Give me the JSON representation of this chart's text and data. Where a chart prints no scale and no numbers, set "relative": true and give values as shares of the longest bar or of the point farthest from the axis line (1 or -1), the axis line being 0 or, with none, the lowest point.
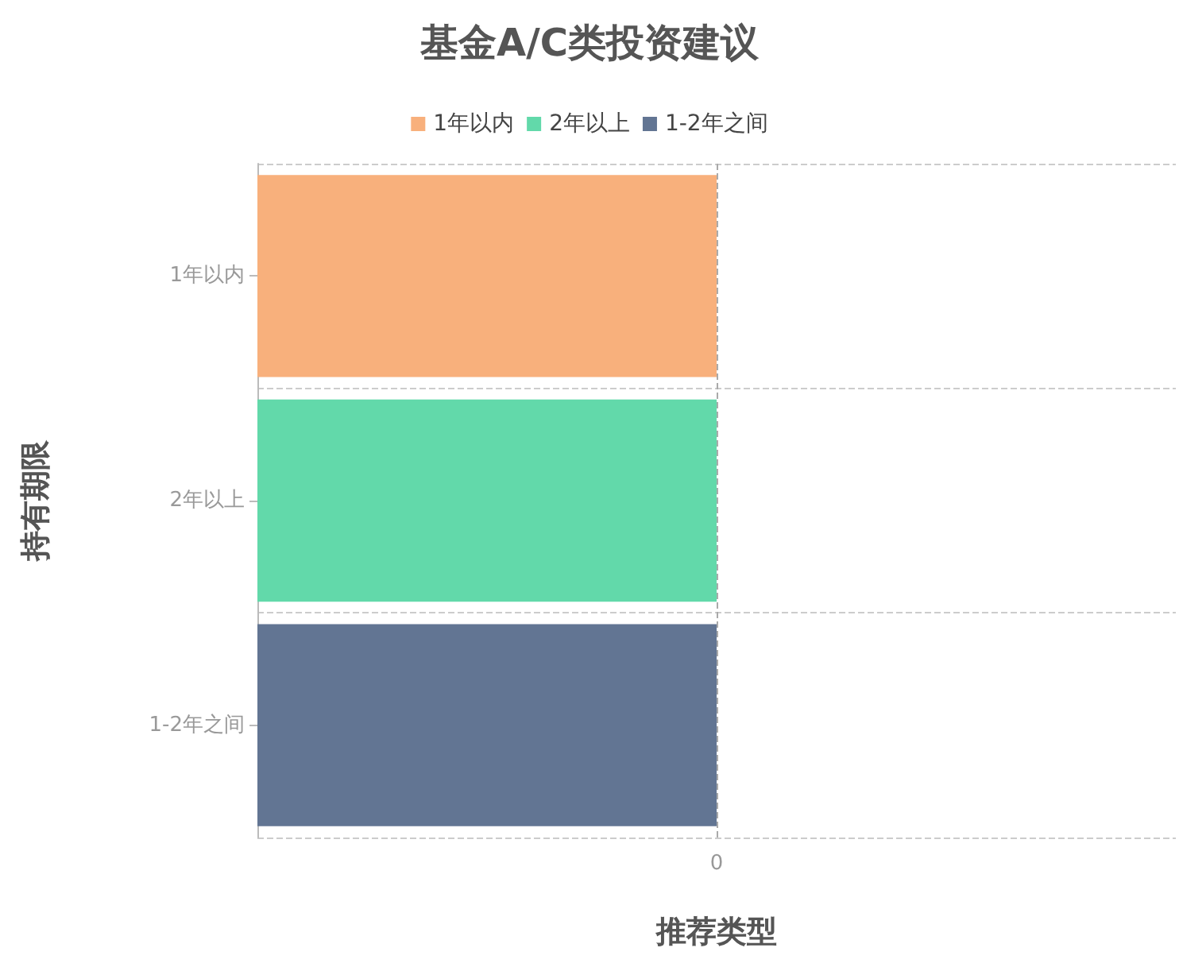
{
  "chart_data": {
    "type": "bar",
    "title": "基金A/C类投资建议",
    "xlabel": "推荐类型",
    "ylabel": "持有期限",
    "orientation": "horizontal",
    "stacked": true,
    "relative": true,
    "categories": [
      "1年以内",
      "2年以上",
      "1-2年之间"
    ],
    "series": [
      {
        "name": "1年以内",
        "color": "#f8b07c",
        "values": [
          -1,
          null,
          null
        ]
      },
      {
        "name": "2年以上",
        "color": "#62d9aa",
        "values": [
          null,
          -1,
          null
        ]
      },
      {
        "name": "1-2年之间",
        "color": "#627593",
        "values": [
          null,
          null,
          -1
        ]
      }
    ],
    "ref_lines": [
      {
        "axis": "x",
        "value": 0,
        "label": "0",
        "line_style": "dashed"
      }
    ],
    "grid": "y",
    "legend": "top"
  }
}
